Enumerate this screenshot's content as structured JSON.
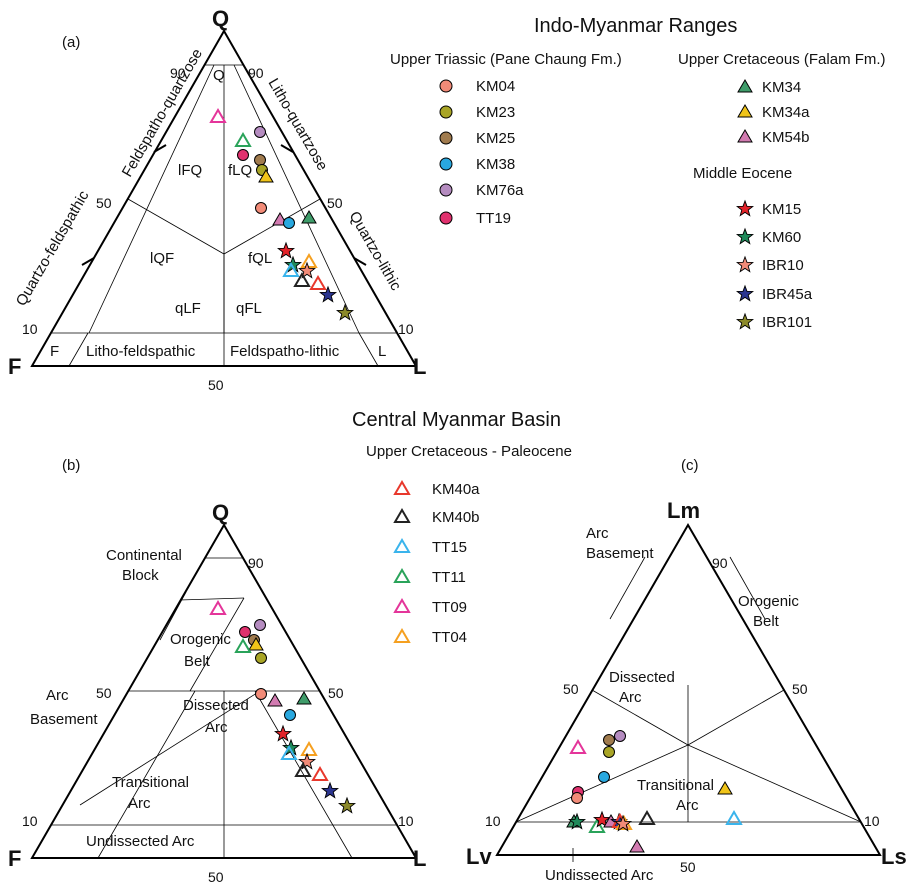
{
  "panel_a": {
    "label": "(a)",
    "vertices": {
      "top": "Q",
      "left": "F",
      "right": "L"
    },
    "edge_labels": {
      "feldspatho_quartzose": "Feldspatho-quartzose",
      "quartzo_feldspathic": "Quartzo-feldspathic",
      "litho_quartzose": "Litho-quartzose",
      "quartzo_lithic": "Quartzo-lithic"
    },
    "ticks": {
      "left90": "90",
      "right90": "90",
      "left50": "50",
      "right50": "50",
      "left10": "10",
      "right10": "10",
      "bottom50": "50"
    },
    "fields": {
      "Q": "Q",
      "lFQ": "lFQ",
      "fLQ": "fLQ",
      "lQF": "lQF",
      "fQL": "fQL",
      "qLF": "qLF",
      "qFL": "qFL",
      "F": "F",
      "L": "L",
      "litho_feldspathic": "Litho-feldspathic",
      "feldspatho_lithic": "Feldspatho-lithic"
    }
  },
  "legend": {
    "title": "Indo-Myanmar Ranges",
    "upper_triassic": {
      "heading": "Upper Triassic (Pane Chaung Fm.)",
      "items": [
        {
          "label": "KM04",
          "color": "#f28b78"
        },
        {
          "label": "KM23",
          "color": "#a9a526"
        },
        {
          "label": "KM25",
          "color": "#a07b4e"
        },
        {
          "label": "KM38",
          "color": "#29a8df"
        },
        {
          "label": "KM76a",
          "color": "#b58cc0"
        },
        {
          "label": "TT19",
          "color": "#e0316e"
        }
      ]
    },
    "upper_cretaceous": {
      "heading": "Upper Cretaceous (Falam Fm.)",
      "items": [
        {
          "label": "KM34",
          "color": "#3f9c6a"
        },
        {
          "label": "KM34a",
          "color": "#f0c419"
        },
        {
          "label": "KM54b",
          "color": "#d27bb1"
        }
      ]
    },
    "middle_eocene": {
      "heading": "Middle Eocene",
      "items": [
        {
          "label": "KM15",
          "color": "#e2232a"
        },
        {
          "label": "KM60",
          "color": "#1f8a5a"
        },
        {
          "label": "IBR10",
          "color": "#f28b78"
        },
        {
          "label": "IBR45a",
          "color": "#2b3590"
        },
        {
          "label": "IBR101",
          "color": "#8c8a2a"
        }
      ]
    },
    "central_title": "Central Myanmar Basin",
    "central_sub": "Upper Cretaceous - Paleocene",
    "central_items": [
      {
        "label": "KM40a",
        "color": "#e8382c"
      },
      {
        "label": "KM40b",
        "color": "#222222"
      },
      {
        "label": "TT15",
        "color": "#3ab4ec"
      },
      {
        "label": "TT11",
        "color": "#2aa35a"
      },
      {
        "label": "TT09",
        "color": "#e4359a"
      },
      {
        "label": "TT04",
        "color": "#f5a020"
      }
    ]
  },
  "panel_b": {
    "label": "(b)",
    "vertices": {
      "top": "Q",
      "left": "F",
      "right": "L"
    },
    "ticks": {
      "left90": "90",
      "left50": "50",
      "right50": "50",
      "left10": "10",
      "right10": "10",
      "bottom50": "50"
    },
    "fields": {
      "continental_block": [
        "Continental",
        "Block"
      ],
      "orogenic_belt": [
        "Orogenic",
        "Belt"
      ],
      "arc_basement": [
        "Arc",
        "Basement"
      ],
      "dissected_arc": [
        "Dissected",
        "Arc"
      ],
      "transitional_arc": [
        "Transitional",
        "Arc"
      ],
      "undissected_arc": "Undissected Arc"
    }
  },
  "panel_c": {
    "label": "(c)",
    "vertices": {
      "top": "Lm",
      "left": "Lv",
      "right": "Ls"
    },
    "ticks": {
      "right90": "90",
      "left50": "50",
      "right50": "50",
      "left10": "10",
      "right10": "10",
      "bottom50": "50"
    },
    "fields": {
      "arc_basement": [
        "Arc",
        "Basement"
      ],
      "orogenic_belt": [
        "Orogenic",
        "Belt"
      ],
      "dissected_arc": [
        "Dissected",
        "Arc"
      ],
      "transitional_arc": [
        "Transitional",
        "Arc"
      ],
      "undissected_arc": "Undissected Arc"
    }
  }
}
